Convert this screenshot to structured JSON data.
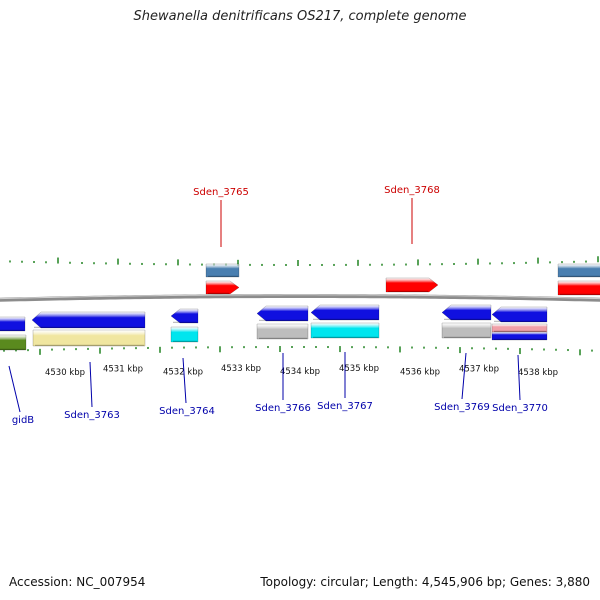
{
  "title": "Shewanella denitrificans OS217, complete genome",
  "footer": {
    "accession": "Accession: NC_007954",
    "stats": "Topology: circular; Length: 4,545,906 bp; Genes: 3,880"
  },
  "colors": {
    "backbone": "#8c8c8c",
    "tick": "#2e8b2e",
    "label_top": "#cc0000",
    "label_bottom": "#0000aa",
    "blue": "#1010e0",
    "red": "#ff0000",
    "steel": "#4a7fb0",
    "gray": "#bdbdbd",
    "cyan": "#00e5ee",
    "khaki": "#f0e6a0",
    "olive": "#5a8a1e",
    "pink": "#f0a0a8"
  },
  "scale_labels": [
    "4530 kbp",
    "4531 kbp",
    "4532 kbp",
    "4533 kbp",
    "4534 kbp",
    "4535 kbp",
    "4536 kbp",
    "4537 kbp",
    "4538 kbp"
  ],
  "gene_labels_top": [
    "Sden_3765",
    "Sden_3768"
  ],
  "gene_labels_bottom": [
    "gidB",
    "Sden_3763",
    "Sden_3764",
    "Sden_3766",
    "Sden_3767",
    "Sden_3769",
    "Sden_3770"
  ]
}
